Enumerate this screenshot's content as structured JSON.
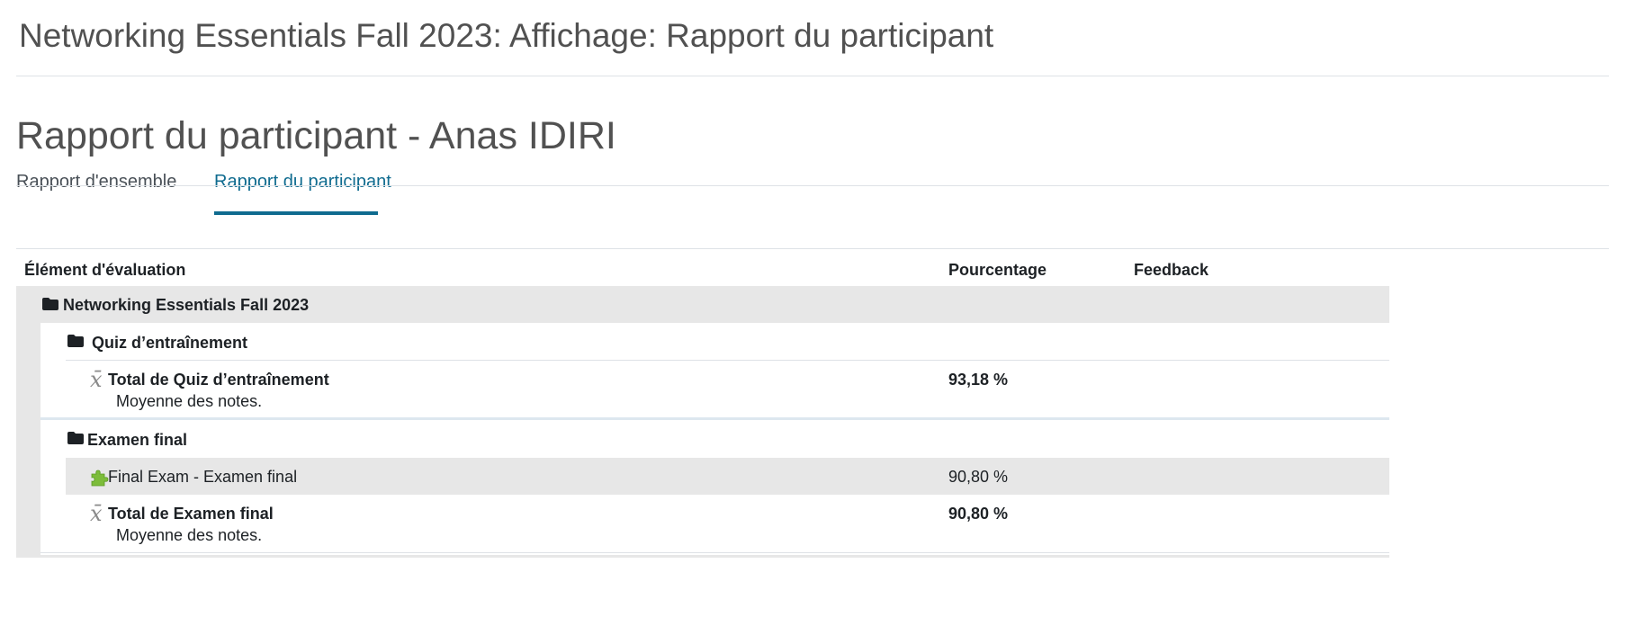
{
  "page": {
    "header_title": "Networking Essentials Fall 2023: Affichage: Rapport du participant",
    "report_title": "Rapport du participant - Anas IDIRI"
  },
  "tabs": [
    {
      "label": "Rapport d'ensemble",
      "active": false
    },
    {
      "label": "Rapport du participant",
      "active": true
    }
  ],
  "table": {
    "headers": {
      "item": "Élément d'évaluation",
      "percentage": "Pourcentage",
      "feedback": "Feedback"
    },
    "course": {
      "name": "Networking Essentials Fall 2023",
      "icon": "folder-icon"
    },
    "categories": [
      {
        "name": "Quiz d’entraînement",
        "icon": "folder-icon",
        "total": {
          "label": "Total de Quiz d’entraînement",
          "description": "Moyenne des notes.",
          "percentage": "93,18 %",
          "icon": "mean-icon"
        }
      },
      {
        "name": "Examen final",
        "icon": "folder-icon",
        "items": [
          {
            "label": "Final Exam - Examen final",
            "percentage": "90,80 %",
            "icon": "puzzle-icon"
          }
        ],
        "total": {
          "label": "Total de Examen final",
          "description": "Moyenne des notes.",
          "percentage": "90,80 %",
          "icon": "mean-icon"
        }
      }
    ]
  },
  "colors": {
    "accent": "#0f6b8f",
    "band_gray": "#e7e7e7",
    "puzzle_green": "#7cbc3a"
  }
}
